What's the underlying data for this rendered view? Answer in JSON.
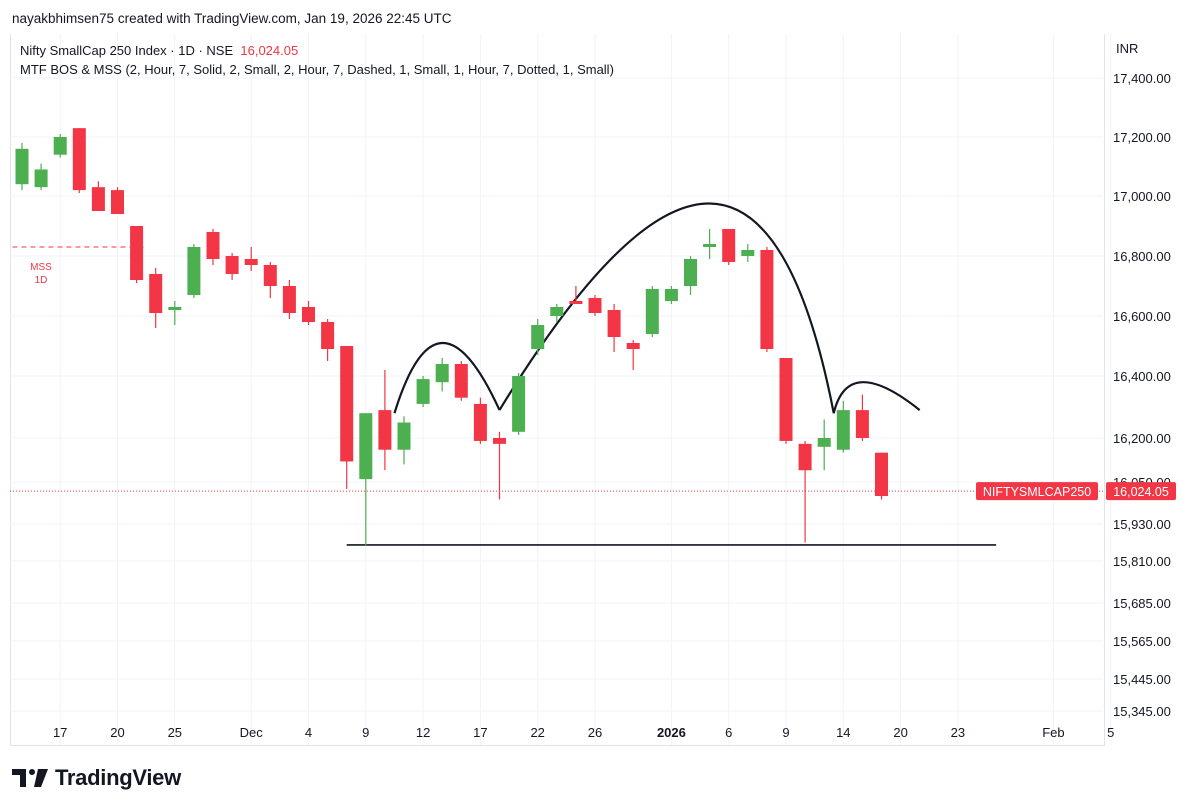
{
  "header": {
    "author_line": "nayakbhimsen75 created with TradingView.com, Jan 19, 2026 22:45 UTC"
  },
  "legend": {
    "symbol": "Nifty SmallCap 250 Index · 1D · NSE",
    "last": "16,024.05",
    "indicator": "MTF BOS & MSS (2, Hour, 7, Solid, 2, Small, 2, Hour, 7, Dashed, 1, Small, 1, Hour, 7, Dotted, 1, Small)"
  },
  "currency": "INR",
  "footer": {
    "brand": "TradingView"
  },
  "colors": {
    "up": "#4caf50",
    "down": "#f23645",
    "grid": "#f0f3fa",
    "text": "#131722"
  },
  "chart_data": {
    "type": "candlestick",
    "symbol_tag": "NIFTYSMLCAP250",
    "last_price_label": "16,024.05",
    "last_price": 16024.05,
    "y_ticks": [
      {
        "value": 17400,
        "label": "17,400.00"
      },
      {
        "value": 17200,
        "label": "17,200.00"
      },
      {
        "value": 17000,
        "label": "17,000.00"
      },
      {
        "value": 16800,
        "label": "16,800.00"
      },
      {
        "value": 16600,
        "label": "16,600.00"
      },
      {
        "value": 16400,
        "label": "16,400.00"
      },
      {
        "value": 16200,
        "label": "16,200.00"
      },
      {
        "value": 16050,
        "label": "16,050.00"
      },
      {
        "value": 15930,
        "label": "15,930.00"
      },
      {
        "value": 15810,
        "label": "15,810.00"
      },
      {
        "value": 15685,
        "label": "15,685.00"
      },
      {
        "value": 15565,
        "label": "15,565.00"
      },
      {
        "value": 15445,
        "label": "15,445.00"
      },
      {
        "value": 15345,
        "label": "15,345.00"
      }
    ],
    "x_ticks": [
      {
        "index": 2,
        "label": "17",
        "bold": false
      },
      {
        "index": 5,
        "label": "20",
        "bold": false
      },
      {
        "index": 8,
        "label": "25",
        "bold": false
      },
      {
        "index": 12,
        "label": "Dec",
        "bold": false
      },
      {
        "index": 15,
        "label": "4",
        "bold": false
      },
      {
        "index": 18,
        "label": "9",
        "bold": false
      },
      {
        "index": 21,
        "label": "12",
        "bold": false
      },
      {
        "index": 24,
        "label": "17",
        "bold": false
      },
      {
        "index": 27,
        "label": "22",
        "bold": false
      },
      {
        "index": 30,
        "label": "26",
        "bold": false
      },
      {
        "index": 34,
        "label": "2026",
        "bold": true
      },
      {
        "index": 37,
        "label": "6",
        "bold": false
      },
      {
        "index": 40,
        "label": "9",
        "bold": false
      },
      {
        "index": 43,
        "label": "14",
        "bold": false
      },
      {
        "index": 46,
        "label": "20",
        "bold": false
      },
      {
        "index": 49,
        "label": "23",
        "bold": false
      },
      {
        "index": 54,
        "label": "Feb",
        "bold": false
      },
      {
        "index": 57,
        "label": "5",
        "bold": false
      }
    ],
    "candles": [
      {
        "o": 17040,
        "h": 17180,
        "l": 17020,
        "c": 17160
      },
      {
        "o": 17030,
        "h": 17110,
        "l": 17020,
        "c": 17090
      },
      {
        "o": 17140,
        "h": 17210,
        "l": 17130,
        "c": 17200
      },
      {
        "o": 17230,
        "h": 17230,
        "l": 17010,
        "c": 17020
      },
      {
        "o": 17030,
        "h": 17050,
        "l": 16950,
        "c": 16950
      },
      {
        "o": 17020,
        "h": 17030,
        "l": 16940,
        "c": 16940
      },
      {
        "o": 16900,
        "h": 16900,
        "l": 16710,
        "c": 16720
      },
      {
        "o": 16740,
        "h": 16760,
        "l": 16560,
        "c": 16610
      },
      {
        "o": 16620,
        "h": 16650,
        "l": 16570,
        "c": 16630
      },
      {
        "o": 16670,
        "h": 16840,
        "l": 16660,
        "c": 16830
      },
      {
        "o": 16880,
        "h": 16890,
        "l": 16770,
        "c": 16790
      },
      {
        "o": 16800,
        "h": 16810,
        "l": 16720,
        "c": 16740
      },
      {
        "o": 16790,
        "h": 16830,
        "l": 16750,
        "c": 16770
      },
      {
        "o": 16770,
        "h": 16780,
        "l": 16660,
        "c": 16700
      },
      {
        "o": 16700,
        "h": 16720,
        "l": 16590,
        "c": 16610
      },
      {
        "o": 16630,
        "h": 16650,
        "l": 16570,
        "c": 16580
      },
      {
        "o": 16580,
        "h": 16590,
        "l": 16450,
        "c": 16490
      },
      {
        "o": 16500,
        "h": 16500,
        "l": 16030,
        "c": 16120
      },
      {
        "o": 16060,
        "h": 16280,
        "l": 15860,
        "c": 16280
      },
      {
        "o": 16290,
        "h": 16420,
        "l": 16090,
        "c": 16160
      },
      {
        "o": 16160,
        "h": 16270,
        "l": 16110,
        "c": 16250
      },
      {
        "o": 16310,
        "h": 16400,
        "l": 16300,
        "c": 16390
      },
      {
        "o": 16380,
        "h": 16460,
        "l": 16350,
        "c": 16440
      },
      {
        "o": 16440,
        "h": 16450,
        "l": 16320,
        "c": 16330
      },
      {
        "o": 16310,
        "h": 16330,
        "l": 16180,
        "c": 16190
      },
      {
        "o": 16200,
        "h": 16220,
        "l": 16000,
        "c": 16180
      },
      {
        "o": 16220,
        "h": 16410,
        "l": 16210,
        "c": 16400
      },
      {
        "o": 16490,
        "h": 16590,
        "l": 16470,
        "c": 16570
      },
      {
        "o": 16600,
        "h": 16640,
        "l": 16580,
        "c": 16630
      },
      {
        "o": 16650,
        "h": 16700,
        "l": 16640,
        "c": 16640
      },
      {
        "o": 16660,
        "h": 16670,
        "l": 16600,
        "c": 16610
      },
      {
        "o": 16620,
        "h": 16640,
        "l": 16480,
        "c": 16530
      },
      {
        "o": 16510,
        "h": 16520,
        "l": 16420,
        "c": 16490
      },
      {
        "o": 16540,
        "h": 16700,
        "l": 16530,
        "c": 16690
      },
      {
        "o": 16650,
        "h": 16700,
        "l": 16640,
        "c": 16690
      },
      {
        "o": 16700,
        "h": 16800,
        "l": 16670,
        "c": 16790
      },
      {
        "o": 16830,
        "h": 16890,
        "l": 16790,
        "c": 16840
      },
      {
        "o": 16890,
        "h": 16890,
        "l": 16770,
        "c": 16780
      },
      {
        "o": 16800,
        "h": 16840,
        "l": 16780,
        "c": 16820
      },
      {
        "o": 16820,
        "h": 16830,
        "l": 16480,
        "c": 16490
      },
      {
        "o": 16460,
        "h": 16460,
        "l": 16180,
        "c": 16190
      },
      {
        "o": 16180,
        "h": 16190,
        "l": 15870,
        "c": 16090
      },
      {
        "o": 16170,
        "h": 16260,
        "l": 16090,
        "c": 16200
      },
      {
        "o": 16160,
        "h": 16320,
        "l": 16150,
        "c": 16290
      },
      {
        "o": 16290,
        "h": 16340,
        "l": 16190,
        "c": 16200
      },
      {
        "o": 16150,
        "h": 16150,
        "l": 16000,
        "c": 16010
      }
    ],
    "annotations": {
      "mss_label": [
        "MSS",
        "1D"
      ],
      "mss_level": 16830,
      "mss_from_index": -0.5,
      "mss_to_index": 6.5,
      "support_level": 15862,
      "support_from_index": 17,
      "support_to_index": 51,
      "arcs": [
        {
          "from_index": 19.5,
          "from_price": 16280,
          "peak_index": 22,
          "peak_price": 16510,
          "to_index": 25,
          "to_price": 16290
        },
        {
          "from_index": 25,
          "from_price": 16290,
          "peak_index": 36,
          "peak_price": 16975,
          "to_index": 42.5,
          "to_price": 16280
        },
        {
          "from_index": 42.5,
          "from_price": 16280,
          "peak_index": 44,
          "peak_price": 16380,
          "to_index": 47,
          "to_price": 16290
        }
      ]
    }
  }
}
